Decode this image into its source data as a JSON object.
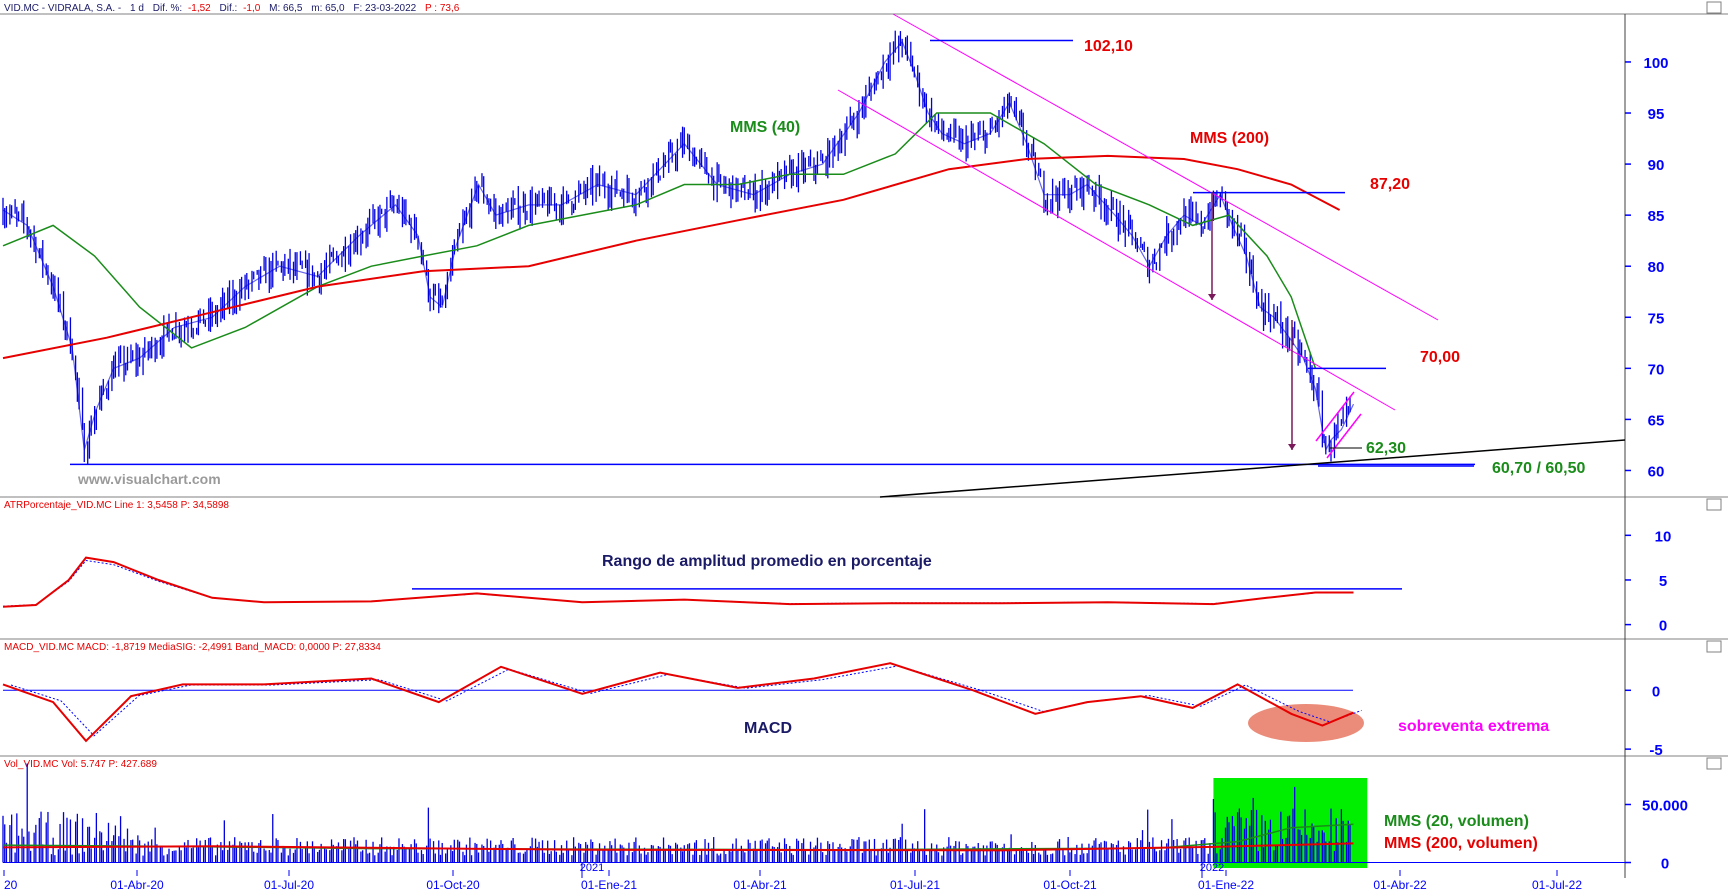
{
  "colors": {
    "price": "#0000e0",
    "axis": "#0000ff",
    "ma_short": "#1a8c1a",
    "ma_long": "#e60000",
    "channel": "#ff00ff",
    "annot_red": "#e60000",
    "annot_green": "#1a8c1a",
    "annot_magenta": "#ff00ff",
    "annot_navy": "#1a1a66",
    "volume_zone": "#00ee00",
    "oversold_zone": "#e8806a"
  },
  "watermark": "www.visualchart.com",
  "x_axis_labels": [
    "20",
    "01-Abr-20",
    "01-Jul-20",
    "01-Oct-20",
    "01-Ene-21",
    "01-Abr-21",
    "01-Jul-21",
    "01-Oct-21",
    "01-Ene-22",
    "01-Abr-22",
    "01-Jul-22"
  ],
  "x_axis_year_markers": [
    "2021",
    "2022"
  ],
  "chart_data": [
    {
      "id": "price",
      "type": "line",
      "header": {
        "symbol": "VID.MC - VIDRALA, S.A. -",
        "timeframe": "1 d",
        "dif_pct_label": "Dif. %:",
        "dif_pct": "-1,52",
        "dif_label": "Dif.:",
        "dif": "-1,0",
        "max": "M: 66,5",
        "min": "m: 65,0",
        "date": "F: 23-03-2022",
        "p": "P : 73,6"
      },
      "yticks": [
        60,
        65,
        70,
        75,
        80,
        85,
        90,
        95,
        100
      ],
      "ylim": [
        57.5,
        104.5
      ],
      "x_range": [
        "2020-02-01",
        "2022-08-01"
      ],
      "series": [
        {
          "name": "",
          "role": "price",
          "x": [
            "2020-02-01",
            "2020-02-15",
            "2020-03-01",
            "2020-03-12",
            "2020-03-19",
            "2020-03-26",
            "2020-04-05",
            "2020-04-20",
            "2020-05-10",
            "2020-06-01",
            "2020-06-20",
            "2020-07-10",
            "2020-08-01",
            "2020-08-25",
            "2020-09-15",
            "2020-09-28",
            "2020-10-05",
            "2020-10-12",
            "2020-10-20",
            "2020-11-02",
            "2020-11-12",
            "2020-12-01",
            "2020-12-20",
            "2021-01-10",
            "2021-02-01",
            "2021-03-01",
            "2021-03-20",
            "2021-04-10",
            "2021-05-01",
            "2021-05-20",
            "2021-06-10",
            "2021-06-25",
            "2021-07-05",
            "2021-07-12",
            "2021-07-20",
            "2021-07-28",
            "2021-08-10",
            "2021-08-25",
            "2021-09-05",
            "2021-09-15",
            "2021-09-25",
            "2021-10-10",
            "2021-10-20",
            "2021-11-05",
            "2021-11-15",
            "2021-11-25",
            "2021-12-05",
            "2021-12-15",
            "2021-12-25",
            "2022-01-05",
            "2022-01-12",
            "2022-01-20",
            "2022-01-28",
            "2022-02-05",
            "2022-02-14",
            "2022-02-22",
            "2022-03-01",
            "2022-03-07",
            "2022-03-10",
            "2022-03-16",
            "2022-03-23"
          ],
          "values": [
            85.5,
            84,
            78,
            72,
            62,
            66,
            70,
            71,
            74,
            75,
            78,
            80,
            79,
            83,
            86,
            83,
            77,
            76,
            82,
            88,
            85,
            86,
            86,
            88,
            87,
            92,
            88,
            87,
            89,
            90,
            95,
            100,
            102,
            99,
            95,
            93,
            92,
            93,
            96,
            92,
            87,
            87,
            88,
            85,
            83,
            80,
            83,
            85,
            84,
            87,
            84,
            81,
            76,
            75,
            73,
            71,
            68,
            62,
            63,
            64,
            66.5
          ]
        },
        {
          "name": "MMS (40)",
          "role": "ma_short",
          "x": [
            "2020-02-01",
            "2020-03-01",
            "2020-03-25",
            "2020-04-20",
            "2020-05-20",
            "2020-06-20",
            "2020-08-01",
            "2020-09-01",
            "2020-10-01",
            "2020-11-01",
            "2020-12-01",
            "2021-01-01",
            "2021-02-01",
            "2021-03-01",
            "2021-04-01",
            "2021-05-01",
            "2021-06-01",
            "2021-07-01",
            "2021-07-25",
            "2021-08-25",
            "2021-09-25",
            "2021-10-25",
            "2021-11-25",
            "2021-12-20",
            "2022-01-10",
            "2022-02-01",
            "2022-02-15",
            "2022-03-01"
          ],
          "values": [
            82,
            84,
            81,
            76,
            72,
            74,
            78,
            80,
            81,
            82,
            84,
            85,
            86,
            88,
            88,
            89,
            89,
            91,
            95,
            95,
            92,
            88,
            86,
            84,
            85,
            81,
            77,
            70
          ]
        },
        {
          "name": "MMS (200)",
          "role": "ma_long",
          "x": [
            "2020-02-01",
            "2020-04-01",
            "2020-06-01",
            "2020-08-01",
            "2020-10-01",
            "2020-12-01",
            "2021-02-01",
            "2021-04-01",
            "2021-06-01",
            "2021-08-01",
            "2021-09-15",
            "2021-11-01",
            "2021-12-15",
            "2022-01-15",
            "2022-02-15",
            "2022-03-15"
          ],
          "values": [
            71,
            73,
            75.5,
            78,
            79.5,
            80,
            82.5,
            84.5,
            86.5,
            89.5,
            90.5,
            90.8,
            90.5,
            89.5,
            88,
            85.5
          ]
        }
      ],
      "levels": [
        {
          "label": "102,10",
          "value": 102.1,
          "color": "red"
        },
        {
          "label": "87,20",
          "value": 87.2,
          "color": "red"
        },
        {
          "label": "70,00",
          "value": 70.0,
          "color": "red"
        },
        {
          "label": "62,30",
          "value": 62.3,
          "color": "green"
        },
        {
          "label": "60,70 / 60,50",
          "value": 60.6,
          "color": "green"
        }
      ],
      "ma_labels": [
        {
          "text": "MMS (40)",
          "color": "green"
        },
        {
          "text": "MMS (200)",
          "color": "red"
        }
      ]
    },
    {
      "id": "atr",
      "type": "line",
      "header": {
        "label": "ATRPorcentaje_VID.MC Line 1: 3,5458 P: 34,5898"
      },
      "annotation": "Rango de amplitud promedio en porcentaje",
      "yticks": [
        0,
        5,
        10
      ],
      "ylim": [
        -1.5,
        12.5
      ],
      "reference_value": 4,
      "x": [
        "2020-02-01",
        "2020-02-20",
        "2020-03-10",
        "2020-03-20",
        "2020-04-05",
        "2020-05-01",
        "2020-06-01",
        "2020-07-01",
        "2020-09-01",
        "2020-11-01",
        "2021-01-01",
        "2021-03-01",
        "2021-05-01",
        "2021-07-01",
        "2021-09-01",
        "2021-11-01",
        "2022-01-01",
        "2022-02-01",
        "2022-03-01",
        "2022-03-23"
      ],
      "values": [
        2,
        2.2,
        5,
        7.5,
        7,
        5,
        3,
        2.5,
        2.6,
        3.5,
        2.5,
        2.8,
        2.3,
        2.4,
        2.4,
        2.5,
        2.3,
        3,
        3.6,
        3.6
      ]
    },
    {
      "id": "macd",
      "type": "line",
      "header": {
        "label": "MACD_VID.MC MACD: -1,8719 MediaSIG: -2,4991 Band_MACD: 0,0000 P: 27,8334"
      },
      "annotation": "MACD",
      "zone_label": "sobreventa extrema",
      "yticks": [
        -5,
        0
      ],
      "ylim": [
        -5.5,
        3
      ],
      "x": [
        "2020-02-01",
        "2020-03-01",
        "2020-03-20",
        "2020-04-15",
        "2020-05-15",
        "2020-07-01",
        "2020-09-01",
        "2020-10-10",
        "2020-11-15",
        "2021-01-01",
        "2021-02-15",
        "2021-04-01",
        "2021-05-15",
        "2021-06-28",
        "2021-08-15",
        "2021-09-20",
        "2021-10-20",
        "2021-11-20",
        "2021-12-20",
        "2022-01-15",
        "2022-02-15",
        "2022-03-05",
        "2022-03-23"
      ],
      "values": [
        0.5,
        -1,
        -4.3,
        -0.5,
        0.5,
        0.5,
        1,
        -1,
        2,
        -0.3,
        1.5,
        0.2,
        1,
        2.3,
        0,
        -2,
        -1,
        -0.5,
        -1.5,
        0.5,
        -2,
        -3,
        -1.9
      ]
    },
    {
      "id": "volume",
      "type": "bar",
      "header": {
        "label": "Vol_VID.MC Vol: 5.747 P: 427.689"
      },
      "yticks": [
        0,
        50000
      ],
      "ytick_labels": [
        "0",
        "50.000"
      ],
      "ylim": [
        -3000,
        78000
      ],
      "ma_labels": [
        {
          "text": "MMS (20, volumen)",
          "color": "green"
        },
        {
          "text": "MMS (200, volumen)",
          "color": "red"
        }
      ],
      "high_volume_zone": {
        "start": "2022-01-01",
        "end": "2022-03-31"
      }
    }
  ]
}
